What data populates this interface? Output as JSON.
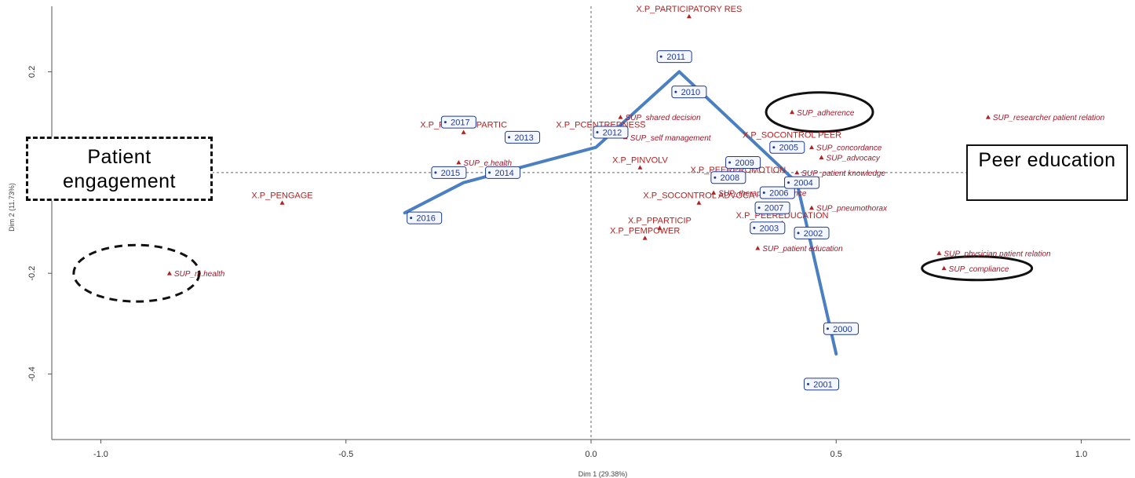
{
  "chart_data": {
    "type": "scatter",
    "xlabel": "Dim 1 (29.38%)",
    "ylabel": "Dim 2 (11.73%)",
    "xlim": [
      -1.1,
      1.1
    ],
    "ylim": [
      -0.53,
      0.33
    ],
    "x_ticks": [
      -1.0,
      -0.5,
      0.0,
      0.5,
      1.0
    ],
    "x_tick_labels": [
      "-1.0",
      "-0.5",
      "0.0",
      "0.5",
      "1.0"
    ],
    "y_ticks": [
      -0.4,
      -0.2,
      0.2
    ],
    "y_tick_labels": [
      "-0.4",
      "-0.2",
      "0.2"
    ],
    "reference_lines": {
      "x": 0,
      "y": 0
    },
    "variables": [
      {
        "label": "X.P_PARTICIPATORY RES",
        "x": 0.2,
        "y": 0.31
      },
      {
        "label": "X.P_PCENTREDNESS",
        "x": 0.02,
        "y": 0.08
      },
      {
        "label": "X.P_PEXPER PARTIC",
        "x": -0.26,
        "y": 0.08
      },
      {
        "label": "X.P_SOCONTROL PEER",
        "x": 0.41,
        "y": 0.06
      },
      {
        "label": "X.P_PINVOLV",
        "x": 0.1,
        "y": 0.01
      },
      {
        "label": "X.P_PENGAGE",
        "x": -0.63,
        "y": -0.06
      },
      {
        "label": "X.P_SOCONTROL ADVOCA",
        "x": 0.22,
        "y": -0.06
      },
      {
        "label": "X.P_PPARTICIP",
        "x": 0.14,
        "y": -0.11
      },
      {
        "label": "X.P_PEMPOWER",
        "x": 0.11,
        "y": -0.13
      },
      {
        "label": "X.P_PEERPROMOTION",
        "x": 0.3,
        "y": -0.01
      },
      {
        "label": "X.P_PEEREDUCATION",
        "x": 0.39,
        "y": -0.1
      }
    ],
    "supplementary": [
      {
        "label": "SUP_shared decision",
        "x": 0.06,
        "y": 0.11
      },
      {
        "label": "SUP_self management",
        "x": 0.07,
        "y": 0.07
      },
      {
        "label": "SUP_e.health",
        "x": -0.27,
        "y": 0.02
      },
      {
        "label": "SUP_therapeutic alliance",
        "x": 0.25,
        "y": -0.04
      },
      {
        "label": "SUP_adherence",
        "x": 0.41,
        "y": 0.12
      },
      {
        "label": "SUP_researcher patient relation",
        "x": 0.81,
        "y": 0.11
      },
      {
        "label": "SUP_concordance",
        "x": 0.45,
        "y": 0.05
      },
      {
        "label": "SUP_advocacy",
        "x": 0.47,
        "y": 0.03
      },
      {
        "label": "SUP_patient knowledge",
        "x": 0.42,
        "y": 0.0
      },
      {
        "label": "SUP_pneumothorax",
        "x": 0.45,
        "y": -0.07
      },
      {
        "label": "SUP_patient education",
        "x": 0.34,
        "y": -0.15
      },
      {
        "label": "SUP_physician patient relation",
        "x": 0.71,
        "y": -0.16
      },
      {
        "label": "SUP_compliance",
        "x": 0.72,
        "y": -0.19
      },
      {
        "label": "SUP_m.health",
        "x": -0.86,
        "y": -0.2
      }
    ],
    "years": [
      {
        "label": "2017",
        "x": -0.27,
        "y": 0.1
      },
      {
        "label": "2011",
        "x": 0.17,
        "y": 0.23
      },
      {
        "label": "2010",
        "x": 0.2,
        "y": 0.16
      },
      {
        "label": "2012",
        "x": 0.04,
        "y": 0.08
      },
      {
        "label": "2013",
        "x": -0.14,
        "y": 0.07
      },
      {
        "label": "2005",
        "x": 0.4,
        "y": 0.05
      },
      {
        "label": "2009",
        "x": 0.31,
        "y": 0.02
      },
      {
        "label": "2015",
        "x": -0.29,
        "y": 0.0
      },
      {
        "label": "2014",
        "x": -0.18,
        "y": 0.0
      },
      {
        "label": "2008",
        "x": 0.28,
        "y": -0.01
      },
      {
        "label": "2006",
        "x": 0.38,
        "y": -0.04
      },
      {
        "label": "2004",
        "x": 0.43,
        "y": -0.02
      },
      {
        "label": "2007",
        "x": 0.37,
        "y": -0.07
      },
      {
        "label": "2003",
        "x": 0.36,
        "y": -0.11
      },
      {
        "label": "2002",
        "x": 0.45,
        "y": -0.12
      },
      {
        "label": "2016",
        "x": -0.34,
        "y": -0.09
      },
      {
        "label": "2000",
        "x": 0.51,
        "y": -0.31
      },
      {
        "label": "2001",
        "x": 0.47,
        "y": -0.42
      }
    ],
    "trajectory": [
      {
        "x": -0.38,
        "y": -0.08
      },
      {
        "x": -0.26,
        "y": -0.02
      },
      {
        "x": 0.01,
        "y": 0.05
      },
      {
        "x": 0.18,
        "y": 0.2
      },
      {
        "x": 0.42,
        "y": -0.02
      },
      {
        "x": 0.5,
        "y": -0.36
      }
    ],
    "highlighted": [
      "SUP_adherence",
      "SUP_compliance",
      "SUP_m.health"
    ]
  },
  "annotations": {
    "patient_engagement": "Patient engagement",
    "peer_education": "Peer education"
  },
  "colors": {
    "variables": "#b22222",
    "years": "#1f3a93",
    "trajectory": "#4a7fc1"
  }
}
